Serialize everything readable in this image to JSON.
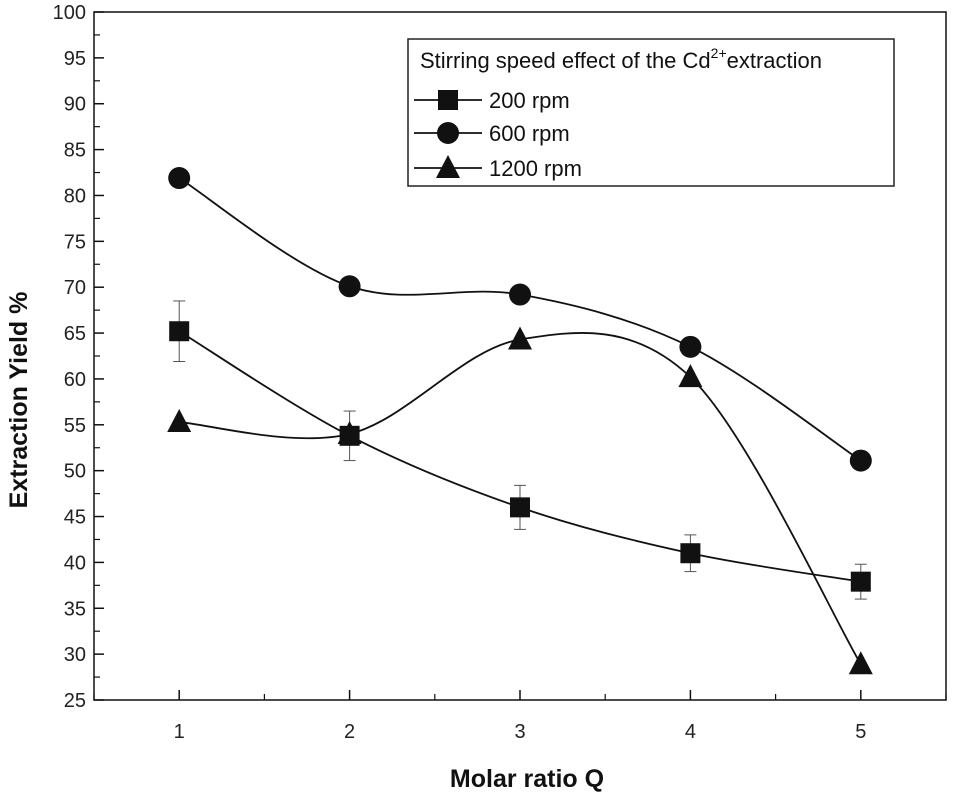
{
  "chart_data": {
    "type": "line",
    "xlabel": "Molar ratio Q",
    "ylabel": "Extraction Yield %",
    "xlim": [
      0.5,
      5.5
    ],
    "ylim": [
      25,
      100
    ],
    "x_ticks": [
      "1",
      "2",
      "3",
      "4",
      "5"
    ],
    "y_ticks": [
      "25",
      "30",
      "35",
      "40",
      "45",
      "50",
      "55",
      "60",
      "65",
      "70",
      "75",
      "80",
      "85",
      "90",
      "95",
      "100"
    ],
    "legend": {
      "title_prefix": "Stirring speed effect of the Cd",
      "title_sup": "2+",
      "title_suffix": "extraction",
      "position": "top-right"
    },
    "series": [
      {
        "name": "200 rpm",
        "marker": "square",
        "x": [
          1,
          2,
          3,
          4,
          5
        ],
        "y": [
          65.2,
          53.8,
          46.0,
          41.0,
          37.9
        ],
        "error": [
          3.3,
          2.7,
          2.4,
          2.0,
          1.9
        ]
      },
      {
        "name": "600 rpm",
        "marker": "circle",
        "x": [
          1,
          2,
          3,
          4,
          5
        ],
        "y": [
          81.9,
          70.1,
          69.2,
          63.5,
          51.1
        ]
      },
      {
        "name": "1200 rpm",
        "marker": "triangle",
        "x": [
          1,
          2,
          3,
          4,
          5
        ],
        "y": [
          55.3,
          54.0,
          64.3,
          60.2,
          28.9
        ]
      }
    ],
    "grid": false,
    "color": "#111111"
  }
}
